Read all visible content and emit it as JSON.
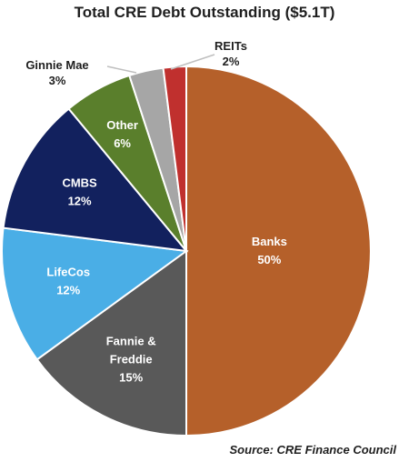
{
  "chart_data": {
    "type": "pie",
    "title": "Total CRE Debt Outstanding ($5.1T)",
    "slices": [
      {
        "label": "Banks",
        "value_text": "50%",
        "value": 50,
        "color": "#B5602A",
        "label_color": "#ffffff"
      },
      {
        "label": "Fannie & Freddie",
        "label_lines": [
          "Fannie &",
          "Freddie"
        ],
        "value_text": "15%",
        "value": 15,
        "color": "#595959",
        "label_color": "#ffffff"
      },
      {
        "label": "LifeCos",
        "value_text": "12%",
        "value": 12,
        "color": "#4AAEE6",
        "label_color": "#ffffff"
      },
      {
        "label": "CMBS",
        "value_text": "12%",
        "value": 12,
        "color": "#12215E",
        "label_color": "#ffffff"
      },
      {
        "label": "Other",
        "value_text": "6%",
        "value": 6,
        "color": "#5A7F2C",
        "label_color": "#ffffff"
      },
      {
        "label": "Ginnie Mae",
        "value_text": "3%",
        "value": 3,
        "color": "#A6A6A6",
        "label_color": "#1f1f1f",
        "external": true
      },
      {
        "label": "REITs",
        "value_text": "2%",
        "value": 2,
        "color": "#C0302E",
        "label_color": "#1f1f1f",
        "external": true
      }
    ],
    "source": "Source: CRE Finance Council"
  }
}
